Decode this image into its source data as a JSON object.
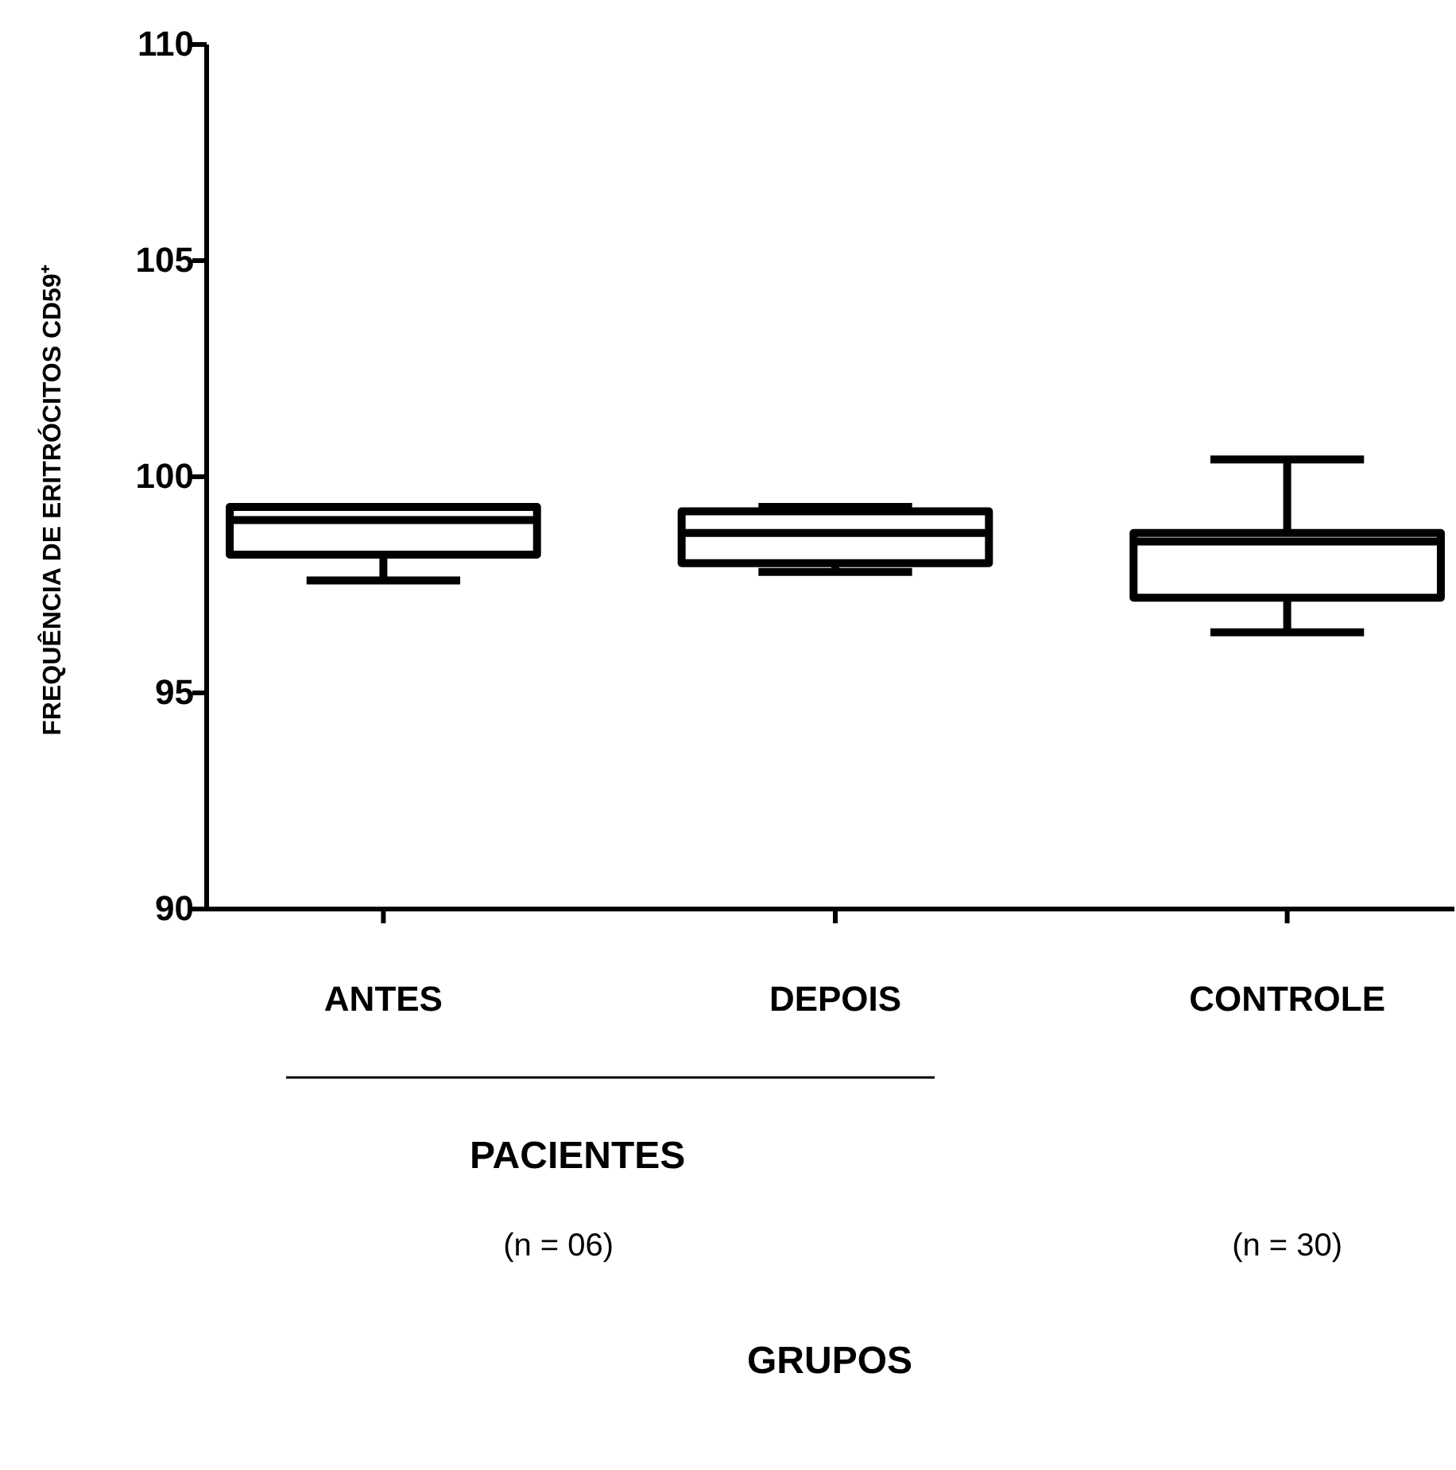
{
  "chart_data": {
    "type": "box",
    "categories": [
      "ANTES",
      "DEPOIS",
      "CONTROLE"
    ],
    "boxes": [
      {
        "low": 97.6,
        "q1": 98.2,
        "median": 99.0,
        "q3": 99.3,
        "high": 99.3
      },
      {
        "low": 97.8,
        "q1": 98.0,
        "median": 98.7,
        "q3": 99.2,
        "high": 99.3
      },
      {
        "low": 96.4,
        "q1": 97.2,
        "median": 98.5,
        "q3": 98.7,
        "high": 100.4
      }
    ],
    "ylim": [
      90,
      110
    ],
    "yticks": [
      90,
      95,
      100,
      105,
      110
    ],
    "grid": false,
    "ylabel": "FREQUÊNCIA DE ERITRÓCITOS CD59⁺",
    "annotations": [
      "PACIENTES",
      "(n = 06)",
      "(n = 30)",
      "GRUPOS"
    ]
  }
}
